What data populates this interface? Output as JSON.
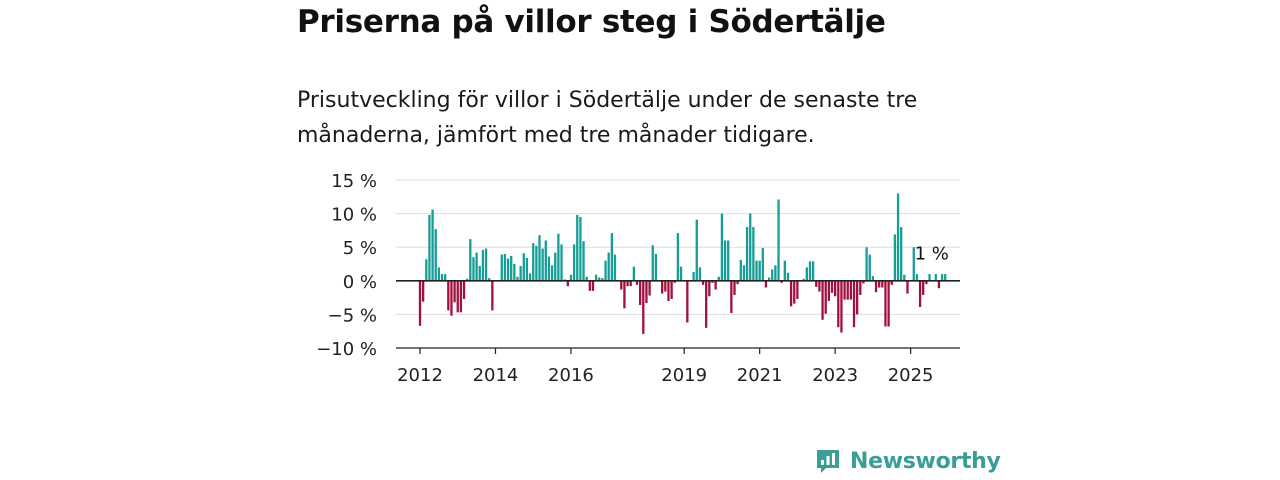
{
  "header": {
    "title": "Priserna på villor steg i Södertälje",
    "subtitle": "Prisutveckling för villor i Södertälje under de senaste tre månaderna, jämfört med tre månader tidigare."
  },
  "brand": {
    "name": "Newsworthy",
    "icon": "newsworthy-logo-icon"
  },
  "colors": {
    "positive": "#149e96",
    "negative": "#a0113e",
    "grid": "#dddddd",
    "axis": "#222222"
  },
  "chart_data": {
    "type": "bar",
    "x_start": "2012-01",
    "x_step": "month",
    "ylim": [
      -10,
      15
    ],
    "yticks": [
      15,
      10,
      5,
      0,
      -5,
      -10
    ],
    "ytick_labels": [
      "15 %",
      "10 %",
      "5 %",
      "0 %",
      "−5 %",
      "−10 %"
    ],
    "xticks": [
      "2012",
      "2014",
      "2016",
      "2019",
      "2021",
      "2023",
      "2025"
    ],
    "grid": true,
    "legend": "none",
    "annotation": {
      "text": "1 %",
      "at": "2025-09"
    },
    "values": [
      -6.7,
      -3.1,
      3.2,
      9.8,
      10.6,
      7.7,
      2.0,
      1.0,
      1.0,
      -4.4,
      -5.2,
      -3.2,
      -4.7,
      -4.7,
      -2.7,
      0.3,
      6.2,
      3.5,
      4.2,
      2.2,
      4.6,
      4.8,
      0.4,
      -4.4,
      0.0,
      0.0,
      3.9,
      4.0,
      3.3,
      3.7,
      2.5,
      0.6,
      2.2,
      4.1,
      3.4,
      1.1,
      5.6,
      5.2,
      6.8,
      4.8,
      6.0,
      3.6,
      2.3,
      4.2,
      7.0,
      5.4,
      0.2,
      -0.8,
      0.9,
      5.4,
      9.8,
      9.5,
      5.9,
      0.6,
      -1.5,
      -1.5,
      0.9,
      0.5,
      0.4,
      3.0,
      4.2,
      7.1,
      3.9,
      0.0,
      -1.3,
      -4.1,
      -0.8,
      -0.8,
      2.1,
      -0.6,
      -3.6,
      -7.9,
      -3.3,
      -2.2,
      5.3,
      4.0,
      0.0,
      -1.9,
      -1.6,
      -3.0,
      -2.7,
      -0.3,
      7.1,
      2.1,
      0.0,
      -6.2,
      0.0,
      1.3,
      9.1,
      2.0,
      -0.6,
      -7.0,
      -2.3,
      -0.3,
      -1.3,
      0.6,
      10.0,
      6.0,
      6.0,
      -4.8,
      -2.1,
      -0.5,
      3.1,
      2.3,
      8.0,
      10.0,
      8.0,
      3.0,
      3.0,
      4.9,
      -1.0,
      0.5,
      1.7,
      2.3,
      12.1,
      -0.3,
      3.0,
      1.2,
      -3.8,
      -3.4,
      -2.7,
      0.0,
      0.3,
      2.0,
      2.9,
      2.9,
      -0.9,
      -1.6,
      -5.8,
      -4.9,
      -3.0,
      -1.8,
      -2.3,
      -6.9,
      -7.7,
      -2.8,
      -2.8,
      -2.8,
      -6.9,
      -5.0,
      -2.1,
      -0.4,
      5.0,
      3.9,
      0.7,
      -1.7,
      -1.0,
      -1.0,
      -6.8,
      -6.8,
      -0.6,
      6.9,
      13.0,
      8.0,
      0.9,
      -1.9,
      0.0,
      5.0,
      1.0,
      -3.9,
      -2.1,
      -0.5,
      1.0,
      0.0,
      1.0,
      -1.1,
      1.0,
      1.0
    ]
  }
}
